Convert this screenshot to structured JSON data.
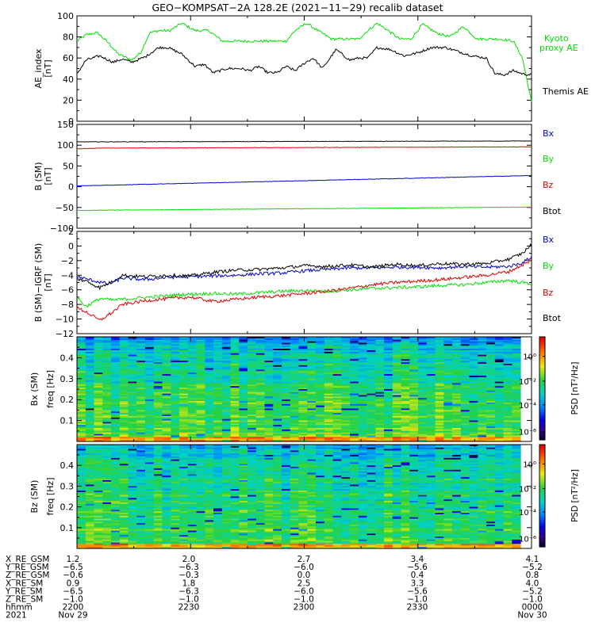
{
  "title": "GEO−KOMPSAT−2A 128.2E (2021−11−29) recalib dataset",
  "colors": {
    "black": "#000000",
    "green": "#00dd00",
    "blue": "#0000cc",
    "red": "#dd0000"
  },
  "chart_data": [
    {
      "type": "line",
      "id": "ae",
      "ylabel": "AE_index",
      "yunit": "[nT]",
      "ylim": [
        0,
        100
      ],
      "yticks": [
        "0",
        "20",
        "40",
        "60",
        "80",
        "100"
      ],
      "series": [
        {
          "name": "Kyoto proxy AE",
          "label_lines": [
            "Kyoto",
            "proxy AE"
          ],
          "color": "#00dd00",
          "x": [
            0,
            0.02,
            0.045,
            0.07,
            0.09,
            0.12,
            0.14,
            0.16,
            0.18,
            0.205,
            0.23,
            0.26,
            0.29,
            0.32,
            0.35,
            0.38,
            0.41,
            0.44,
            0.46,
            0.48,
            0.505,
            0.53,
            0.56,
            0.59,
            0.62,
            0.64,
            0.66,
            0.685,
            0.71,
            0.735,
            0.76,
            0.79,
            0.82,
            0.85,
            0.88,
            0.9,
            0.93,
            0.96,
            0.98,
            1.0
          ],
          "values": [
            76,
            82,
            84,
            74,
            64,
            58,
            65,
            84,
            86,
            86,
            93,
            86,
            86,
            76,
            76,
            76,
            76,
            76,
            76,
            86,
            93,
            86,
            78,
            78,
            78,
            86,
            93,
            86,
            78,
            78,
            92,
            84,
            80,
            90,
            78,
            78,
            78,
            76,
            60,
            18
          ]
        },
        {
          "name": "Themis AE",
          "label_lines": [
            "Themis AE"
          ],
          "color": "#000000",
          "x": [
            0,
            0.02,
            0.05,
            0.08,
            0.1,
            0.12,
            0.15,
            0.18,
            0.2,
            0.23,
            0.26,
            0.28,
            0.3,
            0.33,
            0.36,
            0.38,
            0.4,
            0.42,
            0.44,
            0.46,
            0.48,
            0.5,
            0.52,
            0.54,
            0.57,
            0.6,
            0.62,
            0.64,
            0.66,
            0.69,
            0.72,
            0.75,
            0.78,
            0.81,
            0.84,
            0.87,
            0.9,
            0.92,
            0.94,
            0.96,
            0.98,
            1.0
          ],
          "values": [
            45,
            58,
            62,
            56,
            59,
            56,
            61,
            70,
            70,
            64,
            52,
            54,
            46,
            50,
            50,
            48,
            52,
            46,
            46,
            52,
            48,
            55,
            60,
            50,
            68,
            58,
            60,
            60,
            70,
            68,
            62,
            65,
            70,
            70,
            66,
            62,
            60,
            45,
            44,
            48,
            45,
            44
          ]
        }
      ]
    },
    {
      "type": "line",
      "id": "bsm",
      "ylabel": "B (SM)",
      "yunit": "[nT]",
      "ylim": [
        -100,
        150
      ],
      "yticks": [
        "−100",
        "−50",
        "0",
        "50",
        "100",
        "150"
      ],
      "series": [
        {
          "name": "Bx",
          "color": "#0000cc",
          "x": [
            0,
            1
          ],
          "values": [
            2,
            27
          ]
        },
        {
          "name": "By",
          "color": "#00dd00",
          "x": [
            0,
            1
          ],
          "values": [
            -57,
            -49
          ]
        },
        {
          "name": "Bz",
          "color": "#dd0000",
          "x": [
            0,
            0.05,
            1
          ],
          "values": [
            91,
            93,
            96
          ]
        },
        {
          "name": "Btot",
          "color": "#000000",
          "x": [
            0,
            1
          ],
          "values": [
            108,
            110
          ]
        }
      ]
    },
    {
      "type": "line",
      "id": "bigrf",
      "ylabel": "B (SM)−IGRF (SM)",
      "yunit": "[nT]",
      "ylim": [
        -12,
        2
      ],
      "yticks": [
        "−12",
        "−10",
        "−8",
        "−6",
        "−4",
        "−2",
        "0",
        "2"
      ],
      "series": [
        {
          "name": "Bx",
          "color": "#0000cc",
          "x": [
            0,
            0.04,
            0.07,
            0.1,
            0.15,
            0.2,
            0.25,
            0.3,
            0.35,
            0.4,
            0.45,
            0.5,
            0.55,
            0.6,
            0.65,
            0.7,
            0.75,
            0.8,
            0.85,
            0.9,
            0.95,
            0.98,
            1.0
          ],
          "values": [
            -4.2,
            -4.8,
            -5.2,
            -4.4,
            -4.6,
            -4.3,
            -4.2,
            -4.1,
            -4.0,
            -3.8,
            -3.7,
            -3.4,
            -3.2,
            -3.0,
            -3.0,
            -2.9,
            -2.9,
            -3.0,
            -2.8,
            -2.9,
            -2.8,
            -2.3,
            -1.5
          ]
        },
        {
          "name": "By",
          "color": "#00dd00",
          "x": [
            0,
            0.02,
            0.05,
            0.08,
            0.12,
            0.16,
            0.2,
            0.25,
            0.3,
            0.35,
            0.4,
            0.45,
            0.5,
            0.55,
            0.6,
            0.65,
            0.7,
            0.75,
            0.8,
            0.85,
            0.9,
            0.95,
            1.0
          ],
          "values": [
            -7.0,
            -8.3,
            -7.2,
            -7.4,
            -7.2,
            -7.0,
            -6.8,
            -6.6,
            -6.5,
            -6.6,
            -6.4,
            -6.2,
            -6.1,
            -6.2,
            -6.0,
            -5.8,
            -5.7,
            -5.6,
            -5.4,
            -5.3,
            -5.0,
            -4.7,
            -5.2
          ]
        },
        {
          "name": "Bz",
          "color": "#dd0000",
          "x": [
            0,
            0.02,
            0.05,
            0.08,
            0.1,
            0.15,
            0.2,
            0.25,
            0.3,
            0.35,
            0.4,
            0.45,
            0.5,
            0.55,
            0.6,
            0.65,
            0.7,
            0.75,
            0.8,
            0.85,
            0.9,
            0.95,
            1.0
          ],
          "values": [
            -8.5,
            -9.0,
            -10.2,
            -9.0,
            -8.0,
            -7.5,
            -7.2,
            -7.0,
            -7.6,
            -7.3,
            -7.0,
            -6.8,
            -6.5,
            -6.2,
            -5.8,
            -5.3,
            -5.0,
            -4.8,
            -4.6,
            -4.3,
            -4.0,
            -3.5,
            -2.0
          ]
        },
        {
          "name": "Btot",
          "color": "#000000",
          "x": [
            0,
            0.02,
            0.05,
            0.08,
            0.1,
            0.15,
            0.2,
            0.25,
            0.3,
            0.35,
            0.4,
            0.45,
            0.5,
            0.55,
            0.6,
            0.65,
            0.7,
            0.75,
            0.8,
            0.85,
            0.9,
            0.95,
            0.98,
            1.0
          ],
          "values": [
            -4.5,
            -4.8,
            -5.7,
            -4.8,
            -4.0,
            -4.2,
            -4.0,
            -4.1,
            -3.6,
            -3.3,
            -3.2,
            -3.0,
            -2.7,
            -2.8,
            -2.6,
            -2.9,
            -2.5,
            -2.7,
            -2.4,
            -2.5,
            -2.4,
            -1.8,
            -1.0,
            0.2
          ]
        }
      ]
    },
    {
      "type": "heatmap",
      "id": "bx_spec",
      "ylabel": "Bx (SM)",
      "ylabel2": "freq [Hz]",
      "ylim": [
        0,
        0.5
      ],
      "yticks": [
        "0.1",
        "0.2",
        "0.3",
        "0.4"
      ],
      "colorbar_label": "PSD [nT²/Hz]",
      "colorbar_ticks": [
        "10⁰",
        "10⁻²",
        "10⁻⁴",
        "10⁻⁶"
      ]
    },
    {
      "type": "heatmap",
      "id": "bz_spec",
      "ylabel": "Bz (SM)",
      "ylabel2": "freq [Hz]",
      "ylim": [
        0,
        0.5
      ],
      "yticks": [
        "0.1",
        "0.2",
        "0.3",
        "0.4"
      ],
      "colorbar_label": "PSD [nT²/Hz]",
      "colorbar_ticks": [
        "10⁰",
        "10⁻²",
        "10⁻⁴",
        "10⁻⁶"
      ]
    }
  ],
  "ephemeris": {
    "row_labels": [
      "X_RE_GSM",
      "Y_RE_GSM",
      "Z_RE_GSM",
      "X_RE_SM",
      "Y_RE_SM",
      "Z_RE_SM",
      "hhmm",
      "2021"
    ],
    "columns": [
      [
        "1.2",
        "−6.5",
        "−0.6",
        "0.9",
        "−6.5",
        "−1.0",
        "2200",
        "Nov 29"
      ],
      [
        "2.0",
        "−6.3",
        "−0.3",
        "1.8",
        "−6.3",
        "−1.0",
        "2230",
        ""
      ],
      [
        "2.7",
        "−6.0",
        "0.0",
        "2.5",
        "−6.0",
        "−1.0",
        "2300",
        ""
      ],
      [
        "3.4",
        "−5.6",
        "0.4",
        "3.3",
        "−5.6",
        "−1.0",
        "2330",
        ""
      ],
      [
        "4.1",
        "−5.2",
        "0.8",
        "4.0",
        "−5.2",
        "−1.0",
        "0000",
        "Nov 30"
      ]
    ]
  }
}
